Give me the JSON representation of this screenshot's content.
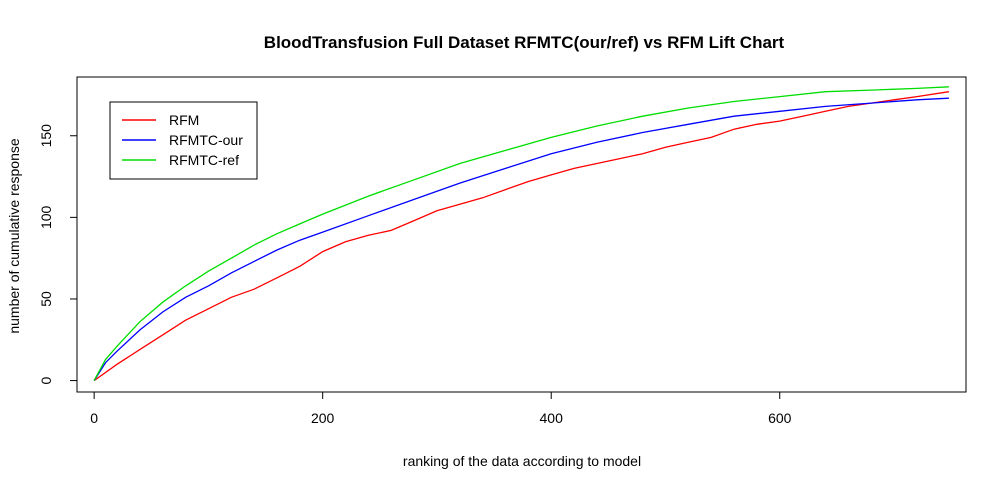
{
  "chart_data": {
    "type": "line",
    "title": "BloodTransfusion Full Dataset RFMTC(our/ref) vs RFM Lift Chart",
    "xlabel": "ranking of the data according to model",
    "ylabel": "number of cumulative response",
    "xlim": [
      -15,
      763
    ],
    "ylim": [
      -7,
      186
    ],
    "xticks": [
      0,
      200,
      400,
      600
    ],
    "yticks": [
      0,
      50,
      100,
      150
    ],
    "legend_position": "top-left",
    "grid": false,
    "series": [
      {
        "name": "RFM",
        "color": "#ff0000",
        "x": [
          0,
          20,
          40,
          60,
          80,
          100,
          120,
          140,
          160,
          180,
          200,
          220,
          240,
          260,
          280,
          300,
          320,
          340,
          360,
          380,
          400,
          420,
          440,
          460,
          480,
          500,
          520,
          540,
          560,
          580,
          600,
          620,
          640,
          660,
          680,
          700,
          720,
          748
        ],
        "y": [
          0,
          10,
          19,
          28,
          37,
          44,
          51,
          56,
          63,
          70,
          79,
          85,
          89,
          92,
          98,
          104,
          108,
          112,
          117,
          122,
          126,
          130,
          133,
          136,
          139,
          143,
          146,
          149,
          154,
          157,
          159,
          162,
          165,
          168,
          170,
          172,
          174,
          177
        ]
      },
      {
        "name": "RFMTC-our",
        "color": "#0000ff",
        "x": [
          0,
          10,
          20,
          40,
          60,
          80,
          100,
          120,
          140,
          160,
          180,
          200,
          240,
          280,
          320,
          360,
          400,
          440,
          480,
          520,
          560,
          600,
          640,
          680,
          720,
          748
        ],
        "y": [
          0,
          11,
          18,
          31,
          42,
          51,
          58,
          66,
          73,
          80,
          86,
          91,
          101,
          111,
          121,
          130,
          139,
          146,
          152,
          157,
          162,
          165,
          168,
          170,
          172,
          173
        ]
      },
      {
        "name": "RFMTC-ref",
        "color": "#00dd00",
        "x": [
          0,
          10,
          20,
          40,
          60,
          80,
          100,
          120,
          140,
          160,
          180,
          200,
          240,
          280,
          320,
          360,
          400,
          440,
          480,
          520,
          560,
          600,
          640,
          680,
          720,
          748
        ],
        "y": [
          0,
          13,
          21,
          36,
          48,
          58,
          67,
          75,
          83,
          90,
          96,
          102,
          113,
          123,
          133,
          141,
          149,
          156,
          162,
          167,
          171,
          174,
          177,
          178,
          179,
          180
        ]
      }
    ]
  }
}
